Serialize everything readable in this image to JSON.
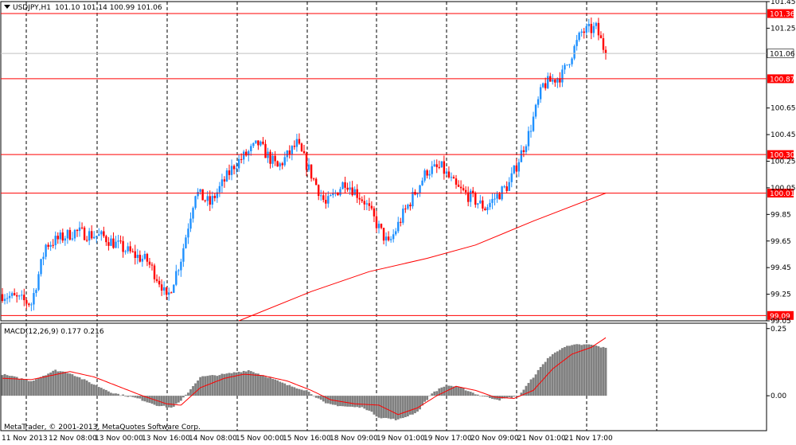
{
  "header": {
    "symbol": "USDJPY,H1",
    "ohlc": "101.10 101.14 100.99 101.06"
  },
  "copyright": "MetaTrader, © 2001-2013, MetaQuotes Software Corp.",
  "colors": {
    "bull": "#1e90ff",
    "bear": "#ff0000",
    "level_line": "#ff0000",
    "ma_line": "#ff0000",
    "grid": "#000000",
    "macd_hist": "#808080",
    "macd_signal": "#ff0000",
    "bid_line": "#c0c0c0"
  },
  "chart_data": [
    {
      "type": "candlestick",
      "panel": "main",
      "symbol": "USDJPY",
      "timeframe": "H1",
      "ylim": [
        99.05,
        101.45
      ],
      "y_ticks": [
        "101.45",
        "101.25",
        "100.65",
        "100.45",
        "100.25",
        "100.05",
        "99.85",
        "99.65",
        "99.45",
        "99.25",
        "99.05"
      ],
      "x_ticks": [
        "11 Nov 2013",
        "12 Nov 08:00",
        "13 Nov 00:00",
        "13 Nov 16:00",
        "14 Nov 08:00",
        "15 Nov 00:00",
        "15 Nov 16:00",
        "18 Nov 09:00",
        "19 Nov 01:00",
        "19 Nov 17:00",
        "20 Nov 09:00",
        "21 Nov 01:00",
        "21 Nov 17:00"
      ],
      "close_anchors": [
        [
          0,
          99.25
        ],
        [
          12,
          99.18
        ],
        [
          18,
          99.62
        ],
        [
          30,
          99.72
        ],
        [
          42,
          99.68
        ],
        [
          54,
          99.55
        ],
        [
          60,
          99.5
        ],
        [
          66,
          99.32
        ],
        [
          68,
          99.2
        ],
        [
          74,
          99.52
        ],
        [
          80,
          100.02
        ],
        [
          86,
          99.93
        ],
        [
          96,
          100.22
        ],
        [
          106,
          100.38
        ],
        [
          114,
          100.2
        ],
        [
          122,
          100.38
        ],
        [
          128,
          100.15
        ],
        [
          134,
          99.92
        ],
        [
          142,
          100.1
        ],
        [
          150,
          99.95
        ],
        [
          155,
          99.78
        ],
        [
          160,
          99.62
        ],
        [
          166,
          99.85
        ],
        [
          176,
          100.18
        ],
        [
          182,
          100.2
        ],
        [
          188,
          100.05
        ],
        [
          194,
          99.98
        ],
        [
          200,
          99.9
        ],
        [
          210,
          100.08
        ],
        [
          218,
          100.45
        ],
        [
          224,
          100.82
        ],
        [
          232,
          100.9
        ],
        [
          240,
          101.22
        ],
        [
          246,
          101.25
        ],
        [
          250,
          101.06
        ]
      ],
      "bid": "101.06",
      "levels": [
        "101.36",
        "100.87",
        "100.30",
        "100.01",
        "99.09"
      ],
      "moving_average": {
        "points": [
          [
            98,
            99.05
          ],
          [
            128,
            99.27
          ],
          [
            152,
            99.42
          ],
          [
            176,
            99.52
          ],
          [
            196,
            99.62
          ],
          [
            220,
            99.8
          ],
          [
            250,
            100.01
          ]
        ]
      }
    },
    {
      "type": "bar",
      "panel": "sub",
      "title": "MACD(12,26,9) 0.177 0.216",
      "ylim": [
        -0.13,
        0.27
      ],
      "y_ticks": [
        "0.25",
        "0.00"
      ],
      "hist_anchors": [
        [
          0,
          0.08
        ],
        [
          12,
          0.055
        ],
        [
          22,
          0.095
        ],
        [
          28,
          0.085
        ],
        [
          36,
          0.05
        ],
        [
          46,
          0.01
        ],
        [
          56,
          -0.01
        ],
        [
          64,
          -0.035
        ],
        [
          70,
          -0.045
        ],
        [
          74,
          -0.02
        ],
        [
          82,
          0.07
        ],
        [
          92,
          0.08
        ],
        [
          102,
          0.095
        ],
        [
          110,
          0.07
        ],
        [
          118,
          0.04
        ],
        [
          126,
          0.02
        ],
        [
          134,
          -0.03
        ],
        [
          142,
          -0.04
        ],
        [
          150,
          -0.045
        ],
        [
          156,
          -0.08
        ],
        [
          164,
          -0.09
        ],
        [
          172,
          -0.06
        ],
        [
          178,
          0.01
        ],
        [
          184,
          0.04
        ],
        [
          190,
          0.03
        ],
        [
          198,
          0.0
        ],
        [
          206,
          -0.015
        ],
        [
          214,
          0.0
        ],
        [
          220,
          0.07
        ],
        [
          226,
          0.14
        ],
        [
          232,
          0.18
        ],
        [
          238,
          0.19
        ],
        [
          244,
          0.19
        ],
        [
          250,
          0.177
        ]
      ],
      "signal_anchors": [
        [
          0,
          0.065
        ],
        [
          12,
          0.06
        ],
        [
          20,
          0.075
        ],
        [
          28,
          0.09
        ],
        [
          38,
          0.07
        ],
        [
          48,
          0.035
        ],
        [
          58,
          0.0
        ],
        [
          68,
          -0.03
        ],
        [
          74,
          -0.035
        ],
        [
          82,
          0.03
        ],
        [
          92,
          0.065
        ],
        [
          100,
          0.08
        ],
        [
          108,
          0.075
        ],
        [
          118,
          0.055
        ],
        [
          128,
          0.02
        ],
        [
          136,
          -0.015
        ],
        [
          146,
          -0.03
        ],
        [
          156,
          -0.035
        ],
        [
          164,
          -0.07
        ],
        [
          172,
          -0.045
        ],
        [
          180,
          0.0
        ],
        [
          188,
          0.035
        ],
        [
          196,
          0.02
        ],
        [
          204,
          -0.005
        ],
        [
          212,
          -0.01
        ],
        [
          220,
          0.02
        ],
        [
          228,
          0.1
        ],
        [
          236,
          0.155
        ],
        [
          244,
          0.18
        ],
        [
          250,
          0.216
        ]
      ]
    }
  ]
}
